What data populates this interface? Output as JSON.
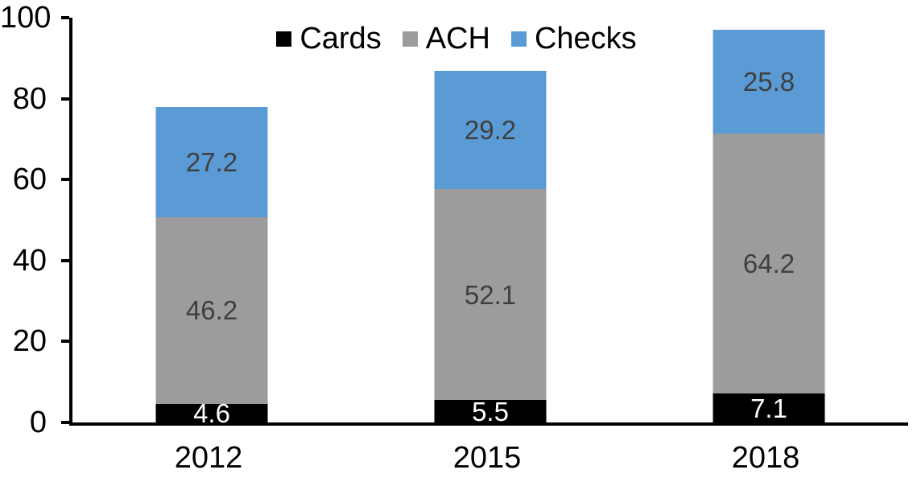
{
  "chart_data": {
    "type": "bar",
    "stacked": true,
    "categories": [
      "2012",
      "2015",
      "2018"
    ],
    "series": [
      {
        "name": "Cards",
        "color": "#000000",
        "label_color": "#ffffff",
        "values": [
          4.6,
          5.5,
          7.1
        ]
      },
      {
        "name": "ACH",
        "color": "#9c9c9c",
        "label_color": "#3f3f3f",
        "values": [
          46.2,
          52.1,
          64.2
        ]
      },
      {
        "name": "Checks",
        "color": "#5b9bd5",
        "label_color": "#3f3f3f",
        "values": [
          27.2,
          29.2,
          25.8
        ]
      }
    ],
    "ylim": [
      0,
      100
    ],
    "yticks": [
      0,
      20,
      40,
      60,
      80,
      100
    ],
    "grid": false,
    "legend_position": "top-center",
    "axis_color": "#000000",
    "background_color": "#ffffff",
    "data_labels_shown": true
  }
}
